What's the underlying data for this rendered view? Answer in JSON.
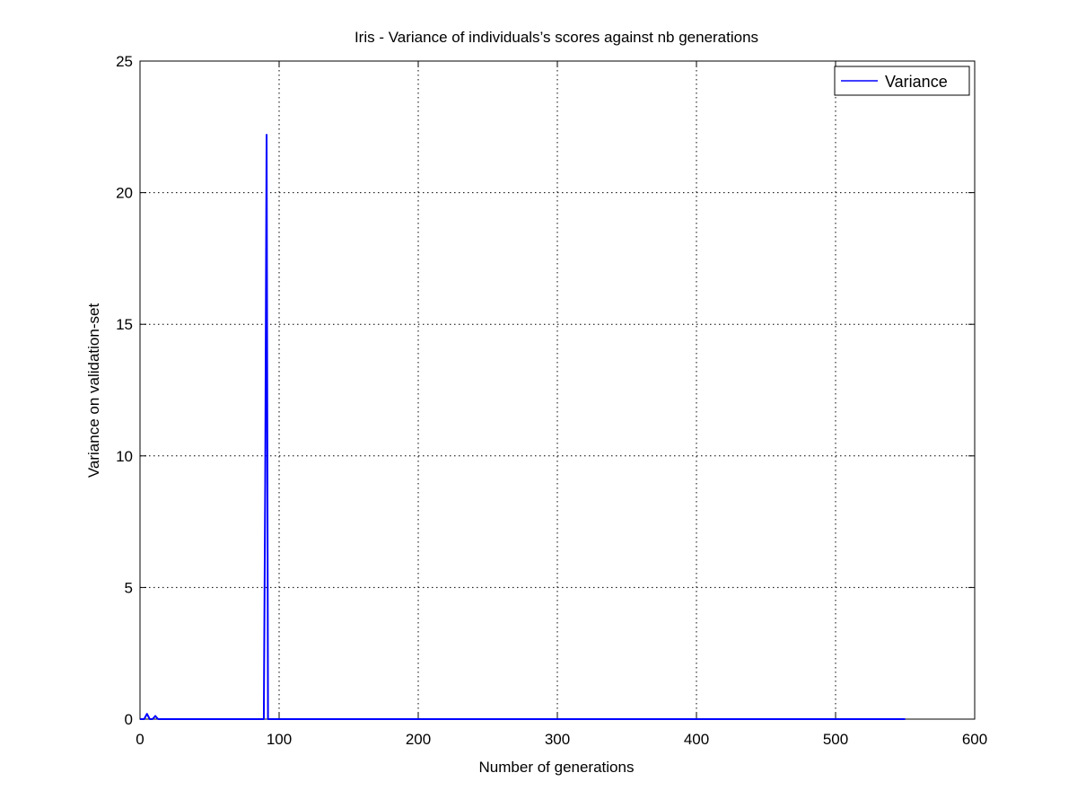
{
  "chart_data": {
    "type": "line",
    "title": "Iris - Variance of individuals’s scores against nb generations",
    "xlabel": "Number of generations",
    "ylabel": "Variance on validation-set",
    "xlim": [
      0,
      600
    ],
    "ylim": [
      0,
      25
    ],
    "xticks": [
      0,
      100,
      200,
      300,
      400,
      500,
      600
    ],
    "yticks": [
      0,
      5,
      10,
      15,
      20,
      25
    ],
    "grid": true,
    "legend_position": "top-right",
    "series": [
      {
        "name": "Variance",
        "color": "#0000ff",
        "x": [
          0,
          3,
          5,
          7,
          9,
          11,
          13,
          15,
          89,
          90,
          91,
          92,
          93,
          94,
          550
        ],
        "y": [
          0,
          0,
          0.2,
          0,
          0,
          0.12,
          0,
          0,
          0,
          9,
          22.2,
          0,
          0,
          0,
          0
        ]
      }
    ]
  }
}
